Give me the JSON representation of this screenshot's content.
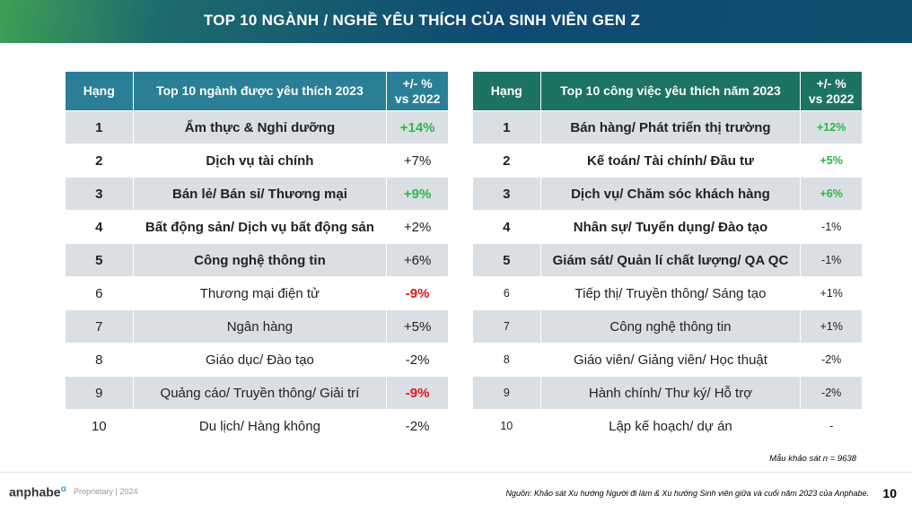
{
  "header": {
    "title": "TOP 10 NGÀNH / NGHỀ YÊU THÍCH CỦA SINH VIÊN GEN Z"
  },
  "tables": [
    {
      "columns": [
        "Hạng",
        "Top 10 ngành được yêu thích 2023",
        "+/- %\nvs 2022"
      ],
      "rows": [
        [
          "1",
          "Ẩm thực & Nghỉ dưỡng",
          "+14%"
        ],
        [
          "2",
          "Dịch vụ tài chính",
          "+7%"
        ],
        [
          "3",
          "Bán lẻ/ Bán sỉ/ Thương mại",
          "+9%"
        ],
        [
          "4",
          "Bất động sản/ Dịch vụ bất động sản",
          "+2%"
        ],
        [
          "5",
          "Công nghệ thông tin",
          "+6%"
        ],
        [
          "6",
          "Thương mại điện tử",
          "-9%"
        ],
        [
          "7",
          "Ngân hàng",
          "+5%"
        ],
        [
          "8",
          "Giáo dục/ Đào tạo",
          "-2%"
        ],
        [
          "9",
          "Quảng cáo/ Truyền thông/ Giải trí",
          "-9%"
        ],
        [
          "10",
          "Du lịch/ Hàng không",
          "-2%"
        ]
      ],
      "header_color": "#2a7f97",
      "change_colors": [
        "#2fb34a",
        null,
        "#2fb34a",
        null,
        null,
        "#e0141e",
        null,
        null,
        "#e0141e",
        null
      ]
    },
    {
      "columns": [
        "Hạng",
        "Top 10 công việc yêu thích năm 2023",
        "+/- %\nvs 2022"
      ],
      "rows": [
        [
          "1",
          "Bán hàng/ Phát triển thị trường",
          "+12%"
        ],
        [
          "2",
          "Kế toán/ Tài chính/ Đầu tư",
          "+5%"
        ],
        [
          "3",
          "Dịch vụ/ Chăm sóc khách hàng",
          "+6%"
        ],
        [
          "4",
          "Nhân sự/ Tuyển dụng/ Đào tạo",
          "-1%"
        ],
        [
          "5",
          "Giám sát/ Quản lí chất lượng/ QA QC",
          "-1%"
        ],
        [
          "6",
          "Tiếp thị/ Truyền thông/ Sáng tạo",
          "+1%"
        ],
        [
          "7",
          "Công nghệ thông tin",
          "+1%"
        ],
        [
          "8",
          "Giáo viên/ Giảng viên/ Học thuật",
          "-2%"
        ],
        [
          "9",
          "Hành chính/ Thư ký/ Hỗ trợ",
          "-2%"
        ],
        [
          "10",
          "Lập kế hoạch/ dự án",
          "-"
        ]
      ],
      "header_color": "#1d7363",
      "change_colors": [
        "#2fb34a",
        "#2fb34a",
        "#2fb34a",
        null,
        null,
        null,
        null,
        null,
        null,
        null
      ]
    }
  ],
  "sample_note": "Mẫu khảo sát n = 9638",
  "footer": {
    "logo": "anphabe",
    "logo_mark": "α",
    "proprietary": "Proprietary | 2024",
    "source": "Nguồn: Khảo sát Xu hướng Người đi làm & Xu hướng Sinh viên giữa và cuối năm 2023 của Anphabe.",
    "page": "10"
  }
}
